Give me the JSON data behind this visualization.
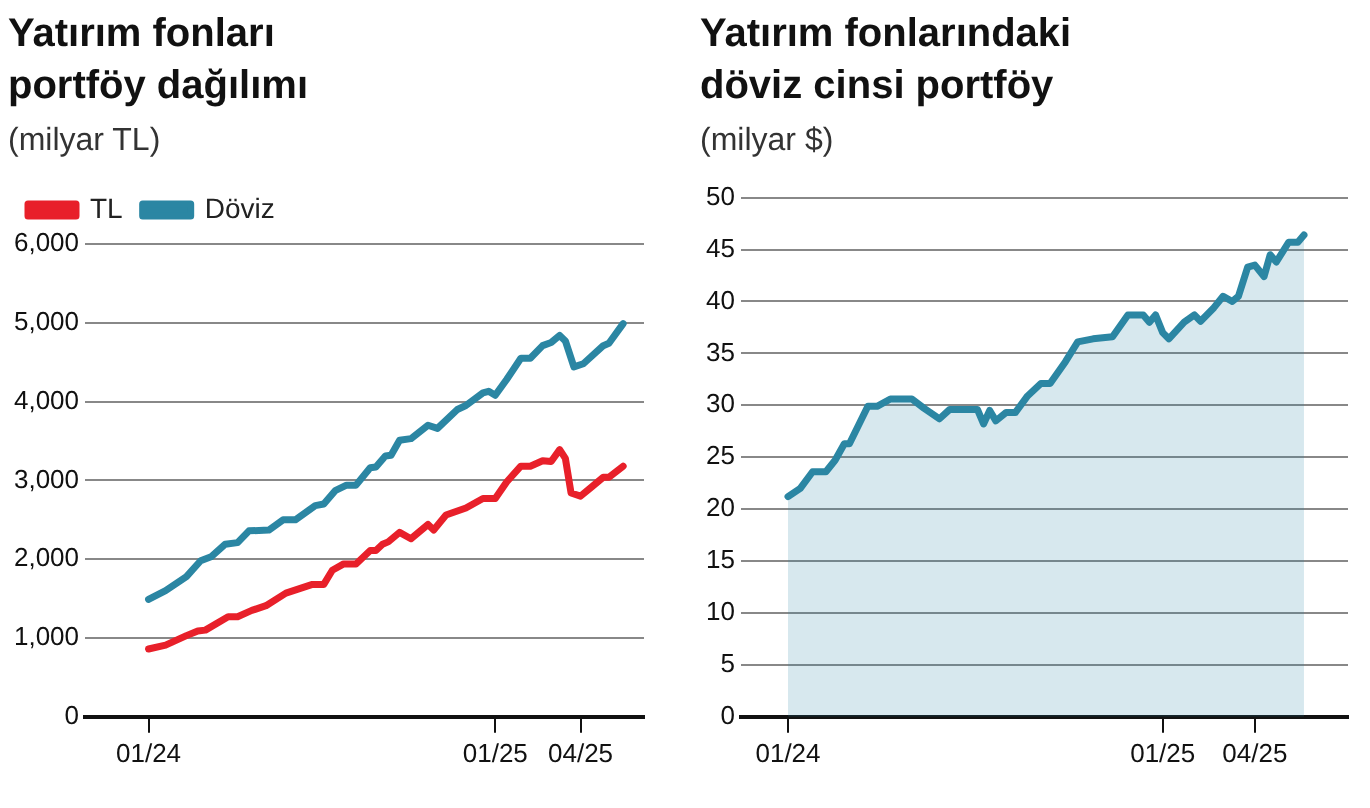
{
  "chart_data": [
    {
      "type": "line",
      "title": "Yatırım fonları portföy dağılımı",
      "subtitle": "(milyar TL)",
      "xlim": [
        "2023-10-26",
        "2025-06-07"
      ],
      "xticks": [
        {
          "value": "2024-01-01",
          "label": "01/24"
        },
        {
          "value": "2025-01-01",
          "label": "01/25"
        },
        {
          "value": "2025-04-01",
          "label": "04/25"
        }
      ],
      "ylim": [
        0,
        6000
      ],
      "yticks": [
        0,
        {
          "value": 1000,
          "label": "1,000"
        },
        {
          "value": 2000,
          "label": "2,000"
        },
        {
          "value": 3000,
          "label": "3,000"
        },
        {
          "value": 4000,
          "label": "4,000"
        },
        {
          "value": 5000,
          "label": "5,000"
        },
        {
          "value": 6000,
          "label": "6,000"
        }
      ],
      "grid": "y",
      "legend": "top left",
      "series": [
        {
          "name": "TL",
          "color": "#e8202a",
          "x": [
            "2024-01-01",
            "2024-01-19",
            "2024-02-10",
            "2024-02-22",
            "2024-03-01",
            "2024-03-25",
            "2024-04-04",
            "2024-04-19",
            "2024-05-04",
            "2024-05-25",
            "2024-06-22",
            "2024-07-04",
            "2024-07-13",
            "2024-07-25",
            "2024-08-07",
            "2024-08-22",
            "2024-08-28",
            "2024-09-04",
            "2024-09-10",
            "2024-09-22",
            "2024-10-04",
            "2024-10-22",
            "2024-10-28",
            "2024-11-10",
            "2024-12-01",
            "2024-12-19",
            "2025-01-01",
            "2025-01-13",
            "2025-01-28",
            "2025-02-07",
            "2025-02-20",
            "2025-03-01",
            "2025-03-10",
            "2025-03-16",
            "2025-03-22",
            "2025-04-01",
            "2025-04-13",
            "2025-04-25",
            "2025-05-01",
            "2025-05-16"
          ],
          "values": [
            860,
            910,
            1030,
            1090,
            1100,
            1270,
            1270,
            1350,
            1410,
            1570,
            1680,
            1680,
            1860,
            1940,
            1940,
            2110,
            2110,
            2190,
            2220,
            2340,
            2260,
            2440,
            2370,
            2560,
            2650,
            2770,
            2770,
            2980,
            3180,
            3180,
            3250,
            3240,
            3390,
            3280,
            2840,
            2800,
            2920,
            3040,
            3040,
            3180
          ]
        },
        {
          "name": "Döviz",
          "color": "#2b86a3",
          "x": [
            "2024-01-01",
            "2024-01-19",
            "2024-02-10",
            "2024-02-25",
            "2024-03-07",
            "2024-03-22",
            "2024-04-04",
            "2024-04-16",
            "2024-05-07",
            "2024-05-22",
            "2024-06-04",
            "2024-06-25",
            "2024-07-04",
            "2024-07-16",
            "2024-07-28",
            "2024-08-07",
            "2024-08-22",
            "2024-08-28",
            "2024-09-07",
            "2024-09-13",
            "2024-09-22",
            "2024-10-04",
            "2024-10-22",
            "2024-11-01",
            "2024-11-22",
            "2024-12-01",
            "2024-12-19",
            "2024-12-25",
            "2025-01-01",
            "2025-01-13",
            "2025-01-28",
            "2025-02-07",
            "2025-02-20",
            "2025-03-01",
            "2025-03-10",
            "2025-03-16",
            "2025-03-25",
            "2025-04-04",
            "2025-04-25",
            "2025-05-01",
            "2025-05-16"
          ],
          "values": [
            1490,
            1600,
            1780,
            1980,
            2030,
            2190,
            2210,
            2360,
            2370,
            2500,
            2500,
            2680,
            2700,
            2870,
            2940,
            2940,
            3160,
            3170,
            3310,
            3320,
            3510,
            3530,
            3700,
            3660,
            3900,
            3950,
            4110,
            4130,
            4080,
            4280,
            4550,
            4550,
            4710,
            4750,
            4840,
            4770,
            4440,
            4480,
            4710,
            4740,
            4990
          ]
        }
      ]
    },
    {
      "type": "area",
      "title": "Yatırım fonlarındaki döviz cinsi portföy",
      "subtitle": "(milyar $)",
      "xlim": [
        "2023-11-16",
        "2025-07-01"
      ],
      "xticks": [
        {
          "value": "2024-01-01",
          "label": "01/24"
        },
        {
          "value": "2025-01-01",
          "label": "01/25"
        },
        {
          "value": "2025-04-01",
          "label": "04/25"
        }
      ],
      "ylim": [
        0,
        50
      ],
      "yticks": [
        0,
        5,
        10,
        15,
        20,
        25,
        30,
        35,
        40,
        45,
        50
      ],
      "grid": "y",
      "series": [
        {
          "color": "#2b86a3",
          "x": [
            "2024-01-01",
            "2024-01-13",
            "2024-01-25",
            "2024-02-07",
            "2024-02-16",
            "2024-02-25",
            "2024-03-01",
            "2024-03-19",
            "2024-03-28",
            "2024-04-10",
            "2024-05-01",
            "2024-05-13",
            "2024-05-28",
            "2024-06-07",
            "2024-07-04",
            "2024-07-10",
            "2024-07-16",
            "2024-07-22",
            "2024-08-01",
            "2024-08-10",
            "2024-08-22",
            "2024-09-04",
            "2024-09-13",
            "2024-09-28",
            "2024-10-10",
            "2024-10-25",
            "2024-11-13",
            "2024-11-28",
            "2024-12-13",
            "2024-12-19",
            "2024-12-25",
            "2025-01-01",
            "2025-01-07",
            "2025-01-22",
            "2025-02-01",
            "2025-02-07",
            "2025-02-20",
            "2025-03-01",
            "2025-03-10",
            "2025-03-16",
            "2025-03-25",
            "2025-04-01",
            "2025-04-10",
            "2025-04-16",
            "2025-04-22",
            "2025-05-04",
            "2025-05-13",
            "2025-05-19"
          ],
          "values": [
            21.2,
            22.0,
            23.6,
            23.6,
            24.7,
            26.3,
            26.3,
            29.9,
            29.9,
            30.6,
            30.6,
            29.7,
            28.7,
            29.6,
            29.6,
            28.2,
            29.5,
            28.5,
            29.3,
            29.3,
            30.9,
            32.1,
            32.1,
            34.2,
            36.1,
            36.4,
            36.6,
            38.7,
            38.7,
            38.0,
            38.7,
            37.0,
            36.4,
            38.0,
            38.7,
            38.1,
            39.4,
            40.5,
            40.0,
            40.5,
            43.3,
            43.5,
            42.4,
            44.5,
            43.8,
            45.7,
            45.7,
            46.4
          ]
        }
      ]
    }
  ]
}
